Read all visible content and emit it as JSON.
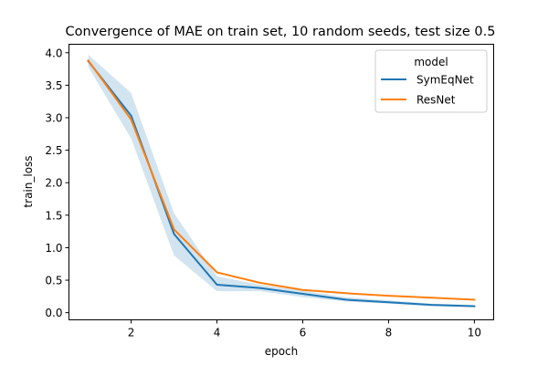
{
  "chart_data": {
    "type": "line",
    "title": "Convergence of MAE on train set, 10 random seeds, test size 0.5",
    "xlabel": "epoch",
    "ylabel": "train_loss",
    "xlim": [
      0.55,
      10.45
    ],
    "ylim": [
      -0.11,
      4.13
    ],
    "x_ticks": [
      "2",
      "4",
      "6",
      "8",
      "10"
    ],
    "y_ticks": [
      "0.0",
      "0.5",
      "1.0",
      "1.5",
      "2.0",
      "2.5",
      "3.0",
      "3.5",
      "4.0"
    ],
    "grid": false,
    "legend": {
      "title": "model",
      "placement": "top-right"
    },
    "x": [
      1,
      2,
      3,
      4,
      5,
      6,
      7,
      8,
      9,
      10
    ],
    "series": [
      {
        "name": "SymEqNet",
        "color": "#1f77b4",
        "values": [
          3.87,
          3.03,
          1.21,
          0.43,
          0.38,
          0.29,
          0.2,
          0.16,
          0.12,
          0.1
        ],
        "ci_lower": [
          3.78,
          2.68,
          0.88,
          0.33,
          0.33,
          0.24,
          0.17,
          0.14,
          0.1,
          0.09
        ],
        "ci_upper": [
          3.97,
          3.38,
          1.53,
          0.56,
          0.43,
          0.34,
          0.24,
          0.19,
          0.14,
          0.12
        ]
      },
      {
        "name": "ResNet",
        "color": "#ff7f0e",
        "values": [
          3.88,
          2.97,
          1.28,
          0.62,
          0.46,
          0.35,
          0.3,
          0.26,
          0.23,
          0.2
        ]
      }
    ]
  }
}
